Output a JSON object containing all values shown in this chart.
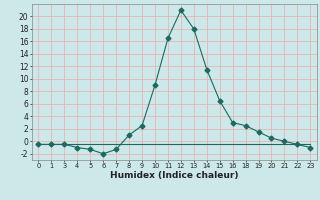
{
  "x_indices": [
    0,
    1,
    2,
    3,
    4,
    5,
    6,
    7,
    8,
    9,
    10,
    11,
    12,
    13,
    14,
    15,
    16,
    17,
    18,
    19,
    20,
    21
  ],
  "x_labels": [
    "0",
    "1",
    "3",
    "4",
    "5",
    "6",
    "7",
    "8",
    "9",
    "10",
    "11",
    "12",
    "13",
    "14",
    "15",
    "16",
    "18",
    "19",
    "20",
    "21",
    "22",
    "23"
  ],
  "y_main": [
    -0.5,
    -0.5,
    -0.5,
    -1.0,
    -1.3,
    -2.0,
    -1.3,
    1.0,
    2.5,
    9.0,
    16.5,
    21.0,
    18.0,
    11.5,
    6.5,
    3.0,
    2.5,
    1.5,
    0.5,
    0.0,
    -0.5,
    -1.0
  ],
  "y_flat": [
    -0.5,
    -0.5,
    -0.5,
    -0.5,
    -0.5,
    -0.5,
    -0.5,
    -0.5,
    -0.5,
    -0.5,
    -0.5,
    -0.5,
    -0.5,
    -0.5,
    -0.5,
    -0.5,
    -0.5,
    -0.5,
    -0.5,
    -0.5,
    -0.5,
    -0.5
  ],
  "xlabel": "Humidex (Indice chaleur)",
  "ylim": [
    -3,
    22
  ],
  "xlim": [
    -0.5,
    21.5
  ],
  "yticks": [
    -2,
    0,
    2,
    4,
    6,
    8,
    10,
    12,
    14,
    16,
    18,
    20
  ],
  "line_color": "#1a6b5e",
  "bg_color": "#cde8e8",
  "grid_color": "#e8b4b4"
}
